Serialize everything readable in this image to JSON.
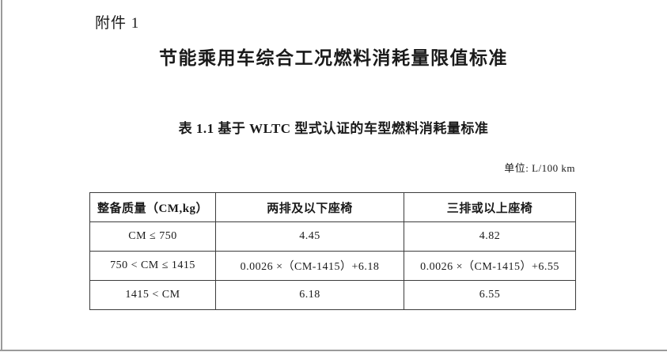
{
  "page": {
    "attachment_label": "附件 1",
    "title": "节能乘用车综合工况燃料消耗量限值标准",
    "table_caption": "表 1.1 基于 WLTC 型式认证的车型燃料消耗量标准",
    "unit_note": "单位: L/100 km"
  },
  "table": {
    "headers": [
      "整备质量（CM,kg）",
      "两排及以下座椅",
      "三排或以上座椅"
    ],
    "rows": [
      [
        "CM ≤ 750",
        "4.45",
        "4.82"
      ],
      [
        "750 < CM ≤ 1415",
        "0.0026 ×（CM-1415）+6.18",
        "0.0026 ×（CM-1415）+6.55"
      ],
      [
        "1415 < CM",
        "6.18",
        "6.55"
      ]
    ]
  },
  "colors": {
    "table_border": "#3c3c3c",
    "page_edge": "#9a9a9a",
    "text": "#1a1a1a",
    "background": "#ffffff"
  }
}
